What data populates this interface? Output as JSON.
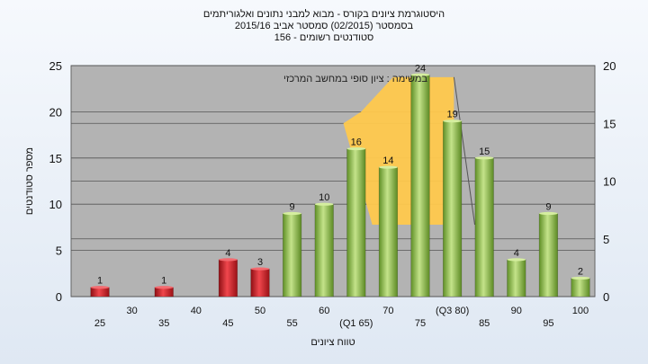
{
  "chart_data": {
    "type": "bar",
    "title_lines": [
      "היסטוגרמת ציונים בקורס - מבוא למבני נתונים ואלגוריתמים",
      "בסמסטר   (02/2015)  סמסטר אביב 2015/16",
      "סטודנטים רשומים - 156"
    ],
    "ylabel": "מספר סטודנטים",
    "xlabel": "טווח ציונים",
    "ylim": [
      0,
      25
    ],
    "yticks": [
      0,
      5,
      10,
      15,
      20,
      25
    ],
    "y2lim": [
      0,
      20
    ],
    "y2ticks": [
      0,
      5,
      10,
      15,
      20
    ],
    "x_labels": [
      "25",
      "30",
      "35",
      "40",
      "45",
      "50",
      "55",
      "60",
      "(Q1 65)",
      "70",
      "75",
      "(Q3 80)",
      "85",
      "90",
      "95",
      "100"
    ],
    "values": [
      1,
      0,
      1,
      0,
      4,
      3,
      9,
      10,
      16,
      14,
      24,
      19,
      15,
      4,
      9,
      2
    ],
    "value_labels": [
      "1",
      "",
      "1",
      "",
      "4",
      "3",
      "9",
      "10",
      "16",
      "14",
      "24",
      "19",
      "15",
      "4",
      "9",
      "2"
    ],
    "bar_colors": [
      "red",
      "",
      "red",
      "",
      "red",
      "red",
      "green",
      "green",
      "green",
      "green",
      "green",
      "green",
      "green",
      "green",
      "green",
      "green"
    ],
    "colors": {
      "red": "#d9282e",
      "green": "#8fc04a",
      "band": "#ffc94d",
      "plot_bg": "#b3b3b3"
    },
    "band": {
      "label": "במשימה : ציון סופי במחשב המרכזי",
      "left_y2": [
        15,
        16
      ],
      "top_y2": 19
    },
    "grid": true
  }
}
